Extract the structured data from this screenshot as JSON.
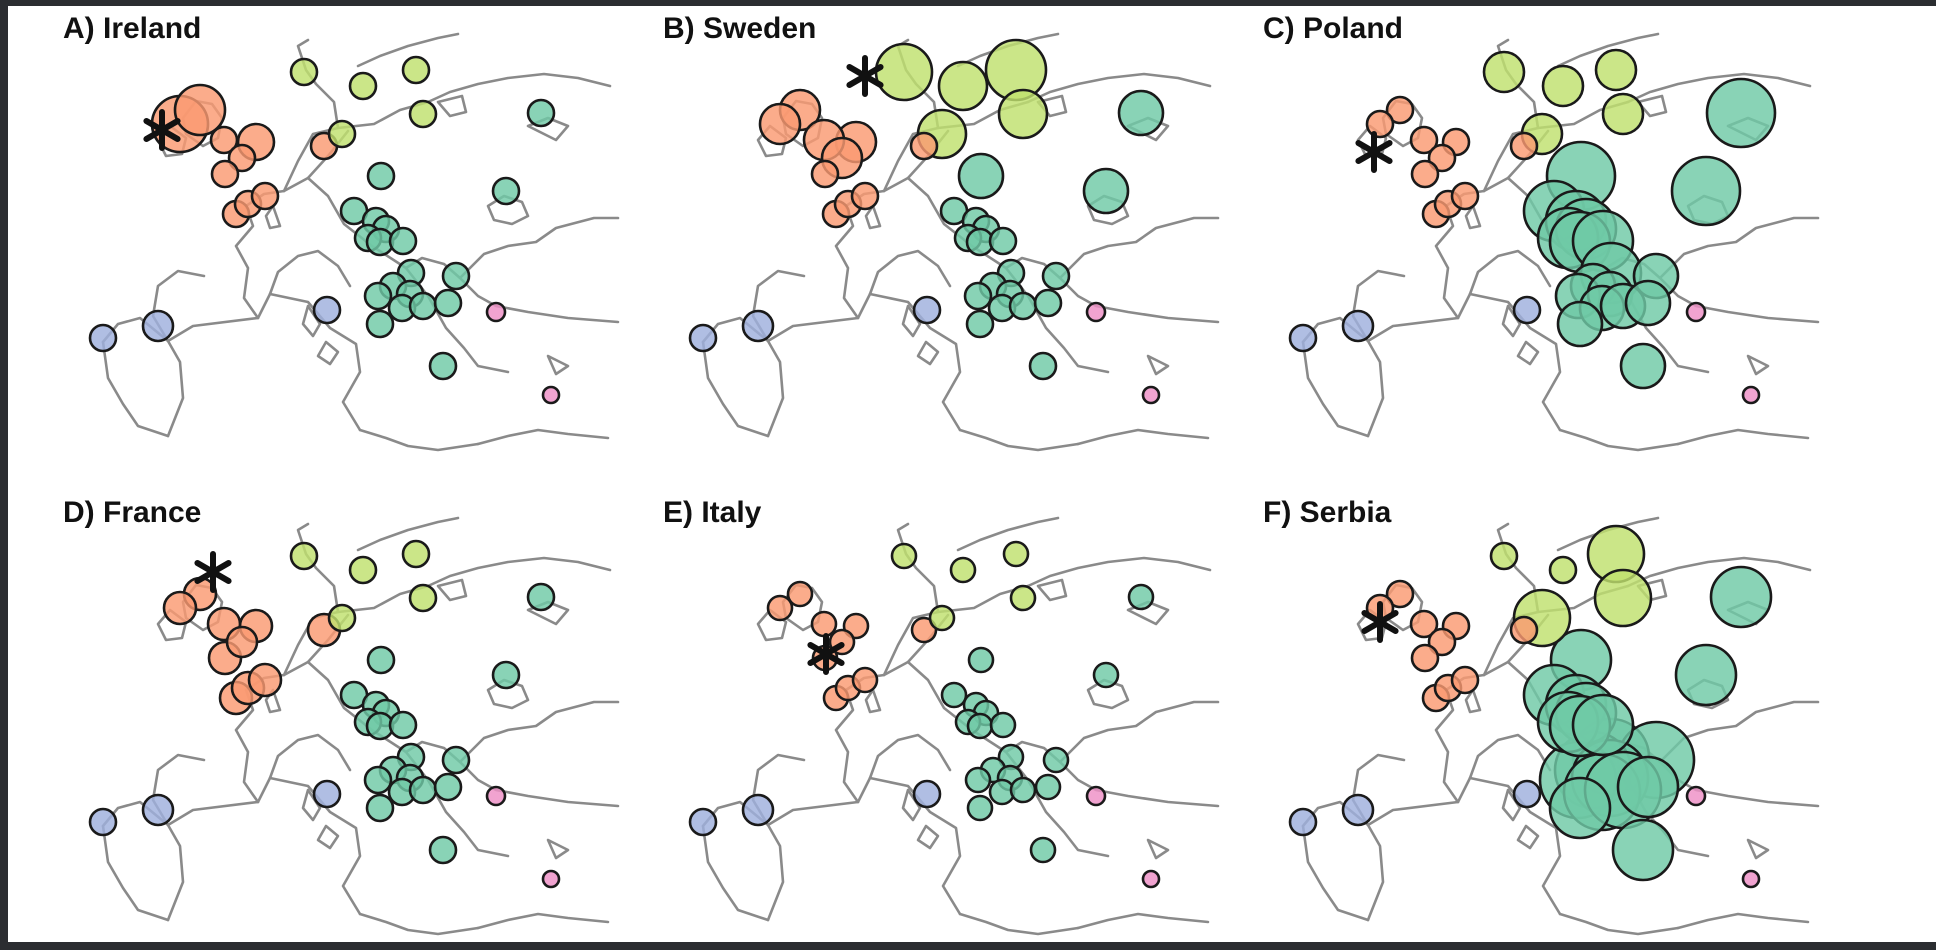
{
  "figure": {
    "panels": [
      {
        "label": "A) Ireland",
        "focal_marker": "asterisk"
      },
      {
        "label": "B) Sweden",
        "focal_marker": "asterisk"
      },
      {
        "label": "C) Poland",
        "focal_marker": "asterisk"
      },
      {
        "label": "D) France",
        "focal_marker": "asterisk"
      },
      {
        "label": "E) Italy",
        "focal_marker": "asterisk"
      },
      {
        "label": "F) Serbia",
        "focal_marker": "asterisk"
      }
    ],
    "group_colors": {
      "northwest": "#fa9a72",
      "scandinavia": "#bfe06e",
      "central_east": "#6fc9a6",
      "iberia": "#9fb0dd",
      "aegean": "#ee8fc6"
    },
    "marker_symbol": "asterisk"
  }
}
